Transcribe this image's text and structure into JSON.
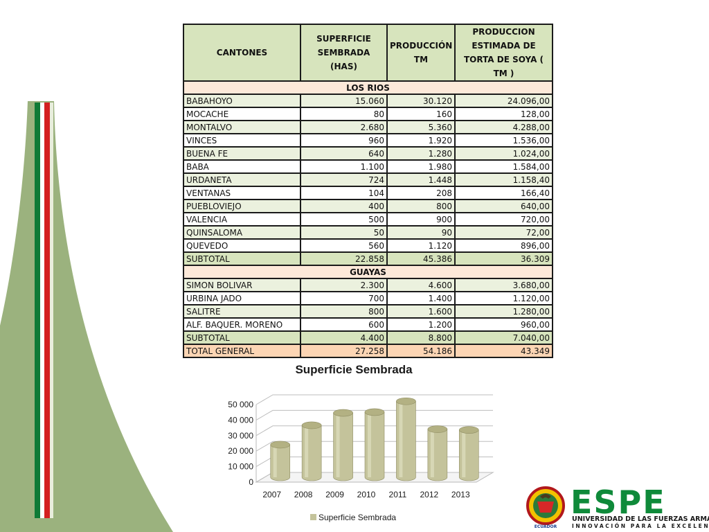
{
  "table": {
    "headers": [
      "CANTONES",
      "SUPERFICIE SEMBRADA (HAS)",
      "PRODUCCIÓN TM",
      "PRODUCCION ESTIMADA DE TORTA DE SOYA ( TM )"
    ],
    "sections": [
      {
        "title": "LOS RIOS",
        "rows": [
          {
            "canton": "BABAHOYO",
            "superficie": "15.060",
            "produccion": "30.120",
            "torta": "24.096,00"
          },
          {
            "canton": "MOCACHE",
            "superficie": "80",
            "produccion": "160",
            "torta": "128,00"
          },
          {
            "canton": "MONTALVO",
            "superficie": "2.680",
            "produccion": "5.360",
            "torta": "4.288,00"
          },
          {
            "canton": "VINCES",
            "superficie": "960",
            "produccion": "1.920",
            "torta": "1.536,00"
          },
          {
            "canton": "BUENA FE",
            "superficie": "640",
            "produccion": "1.280",
            "torta": "1.024,00"
          },
          {
            "canton": "BABA",
            "superficie": "1.100",
            "produccion": "1.980",
            "torta": "1.584,00"
          },
          {
            "canton": "URDANETA",
            "superficie": "724",
            "produccion": "1.448",
            "torta": "1.158,40"
          },
          {
            "canton": "VENTANAS",
            "superficie": "104",
            "produccion": "208",
            "torta": "166,40"
          },
          {
            "canton": "PUEBLOVIEJO",
            "superficie": "400",
            "produccion": "800",
            "torta": "640,00"
          },
          {
            "canton": "VALENCIA",
            "superficie": "500",
            "produccion": "900",
            "torta": "720,00"
          },
          {
            "canton": "QUINSALOMA",
            "superficie": "50",
            "produccion": "90",
            "torta": "72,00"
          },
          {
            "canton": "QUEVEDO",
            "superficie": "560",
            "produccion": "1.120",
            "torta": "896,00"
          }
        ],
        "subtotal": {
          "canton": "SUBTOTAL",
          "superficie": "22.858",
          "produccion": "45.386",
          "torta": "36.309"
        }
      },
      {
        "title": "GUAYAS",
        "rows": [
          {
            "canton": "SIMON BOLIVAR",
            "superficie": "2.300",
            "produccion": "4.600",
            "torta": "3.680,00"
          },
          {
            "canton": "URBINA JADO",
            "superficie": "700",
            "produccion": "1.400",
            "torta": "1.120,00"
          },
          {
            "canton": "SALITRE",
            "superficie": "800",
            "produccion": "1.600",
            "torta": "1.280,00"
          },
          {
            "canton": "ALF. BAQUER. MORENO",
            "superficie": "600",
            "produccion": "1.200",
            "torta": "960,00"
          }
        ],
        "subtotal": {
          "canton": "SUBTOTAL",
          "superficie": "4.400",
          "produccion": "8.800",
          "torta": "7.040,00"
        }
      }
    ],
    "total": {
      "canton": "TOTAL GENERAL",
      "superficie": "27.258",
      "produccion": "54.186",
      "torta": "43.349"
    }
  },
  "chart_data": {
    "type": "bar",
    "title": "Superficie Sembrada",
    "categories": [
      "2007",
      "2008",
      "2009",
      "2010",
      "2011",
      "2012",
      "2013"
    ],
    "series": [
      {
        "name": "Superficie Sembrada",
        "values": [
          21000,
          33500,
          41500,
          42000,
          49000,
          31000,
          30500
        ]
      }
    ],
    "ylim": [
      0,
      50000
    ],
    "yticks": [
      "0",
      "10 000",
      "20 000",
      "30 000",
      "40 000",
      "50 000"
    ],
    "legend": "bottom",
    "grid": true,
    "bar_color": "#c4c39b"
  },
  "logo": {
    "name": "ESPE",
    "subtitle": "UNIVERSIDAD DE LAS FUERZAS ARMADAS",
    "tagline": "INNOVACIÓN PARA LA EXCELENCIA",
    "seal_text": "ECUADOR"
  },
  "colors": {
    "header_bg": "#d7e4bd",
    "row_green": "#ebf1de",
    "section_bg": "#fde9d9",
    "total_bg": "#fcd5b4",
    "espe_green": "#0f8a3a"
  }
}
